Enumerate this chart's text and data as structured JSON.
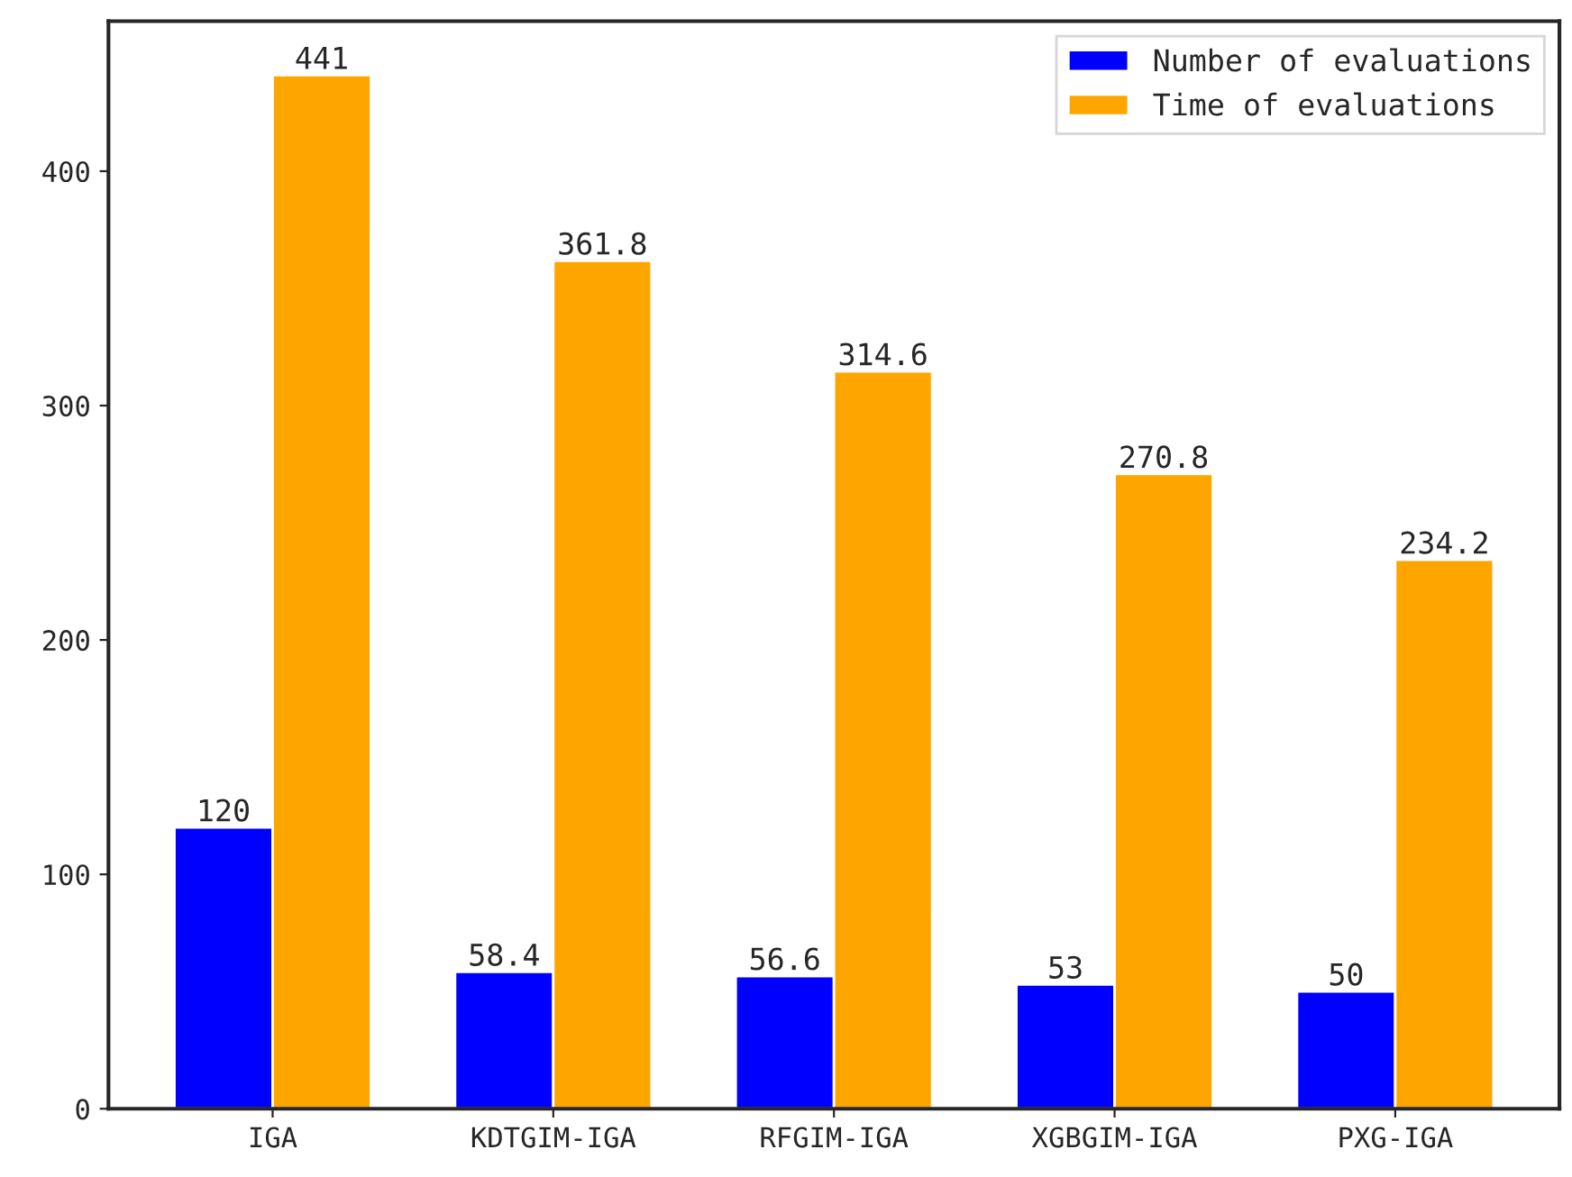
{
  "chart_data": {
    "type": "bar",
    "categories": [
      "IGA",
      "KDTGIM-IGA",
      "RFGIM-IGA",
      "XGBGIM-IGA",
      "PXG-IGA"
    ],
    "series": [
      {
        "name": "Number of evaluations",
        "color": "#0000ff",
        "values": [
          120,
          58.4,
          56.6,
          53,
          50
        ]
      },
      {
        "name": "Time of evaluations",
        "color": "#ffa500",
        "values": [
          441,
          361.8,
          314.6,
          270.8,
          234.2
        ]
      }
    ],
    "ylim": [
      0,
      464
    ],
    "yticks": [
      0,
      100,
      200,
      300,
      400
    ],
    "data_labels": true,
    "legend": "top right",
    "grid": false
  }
}
